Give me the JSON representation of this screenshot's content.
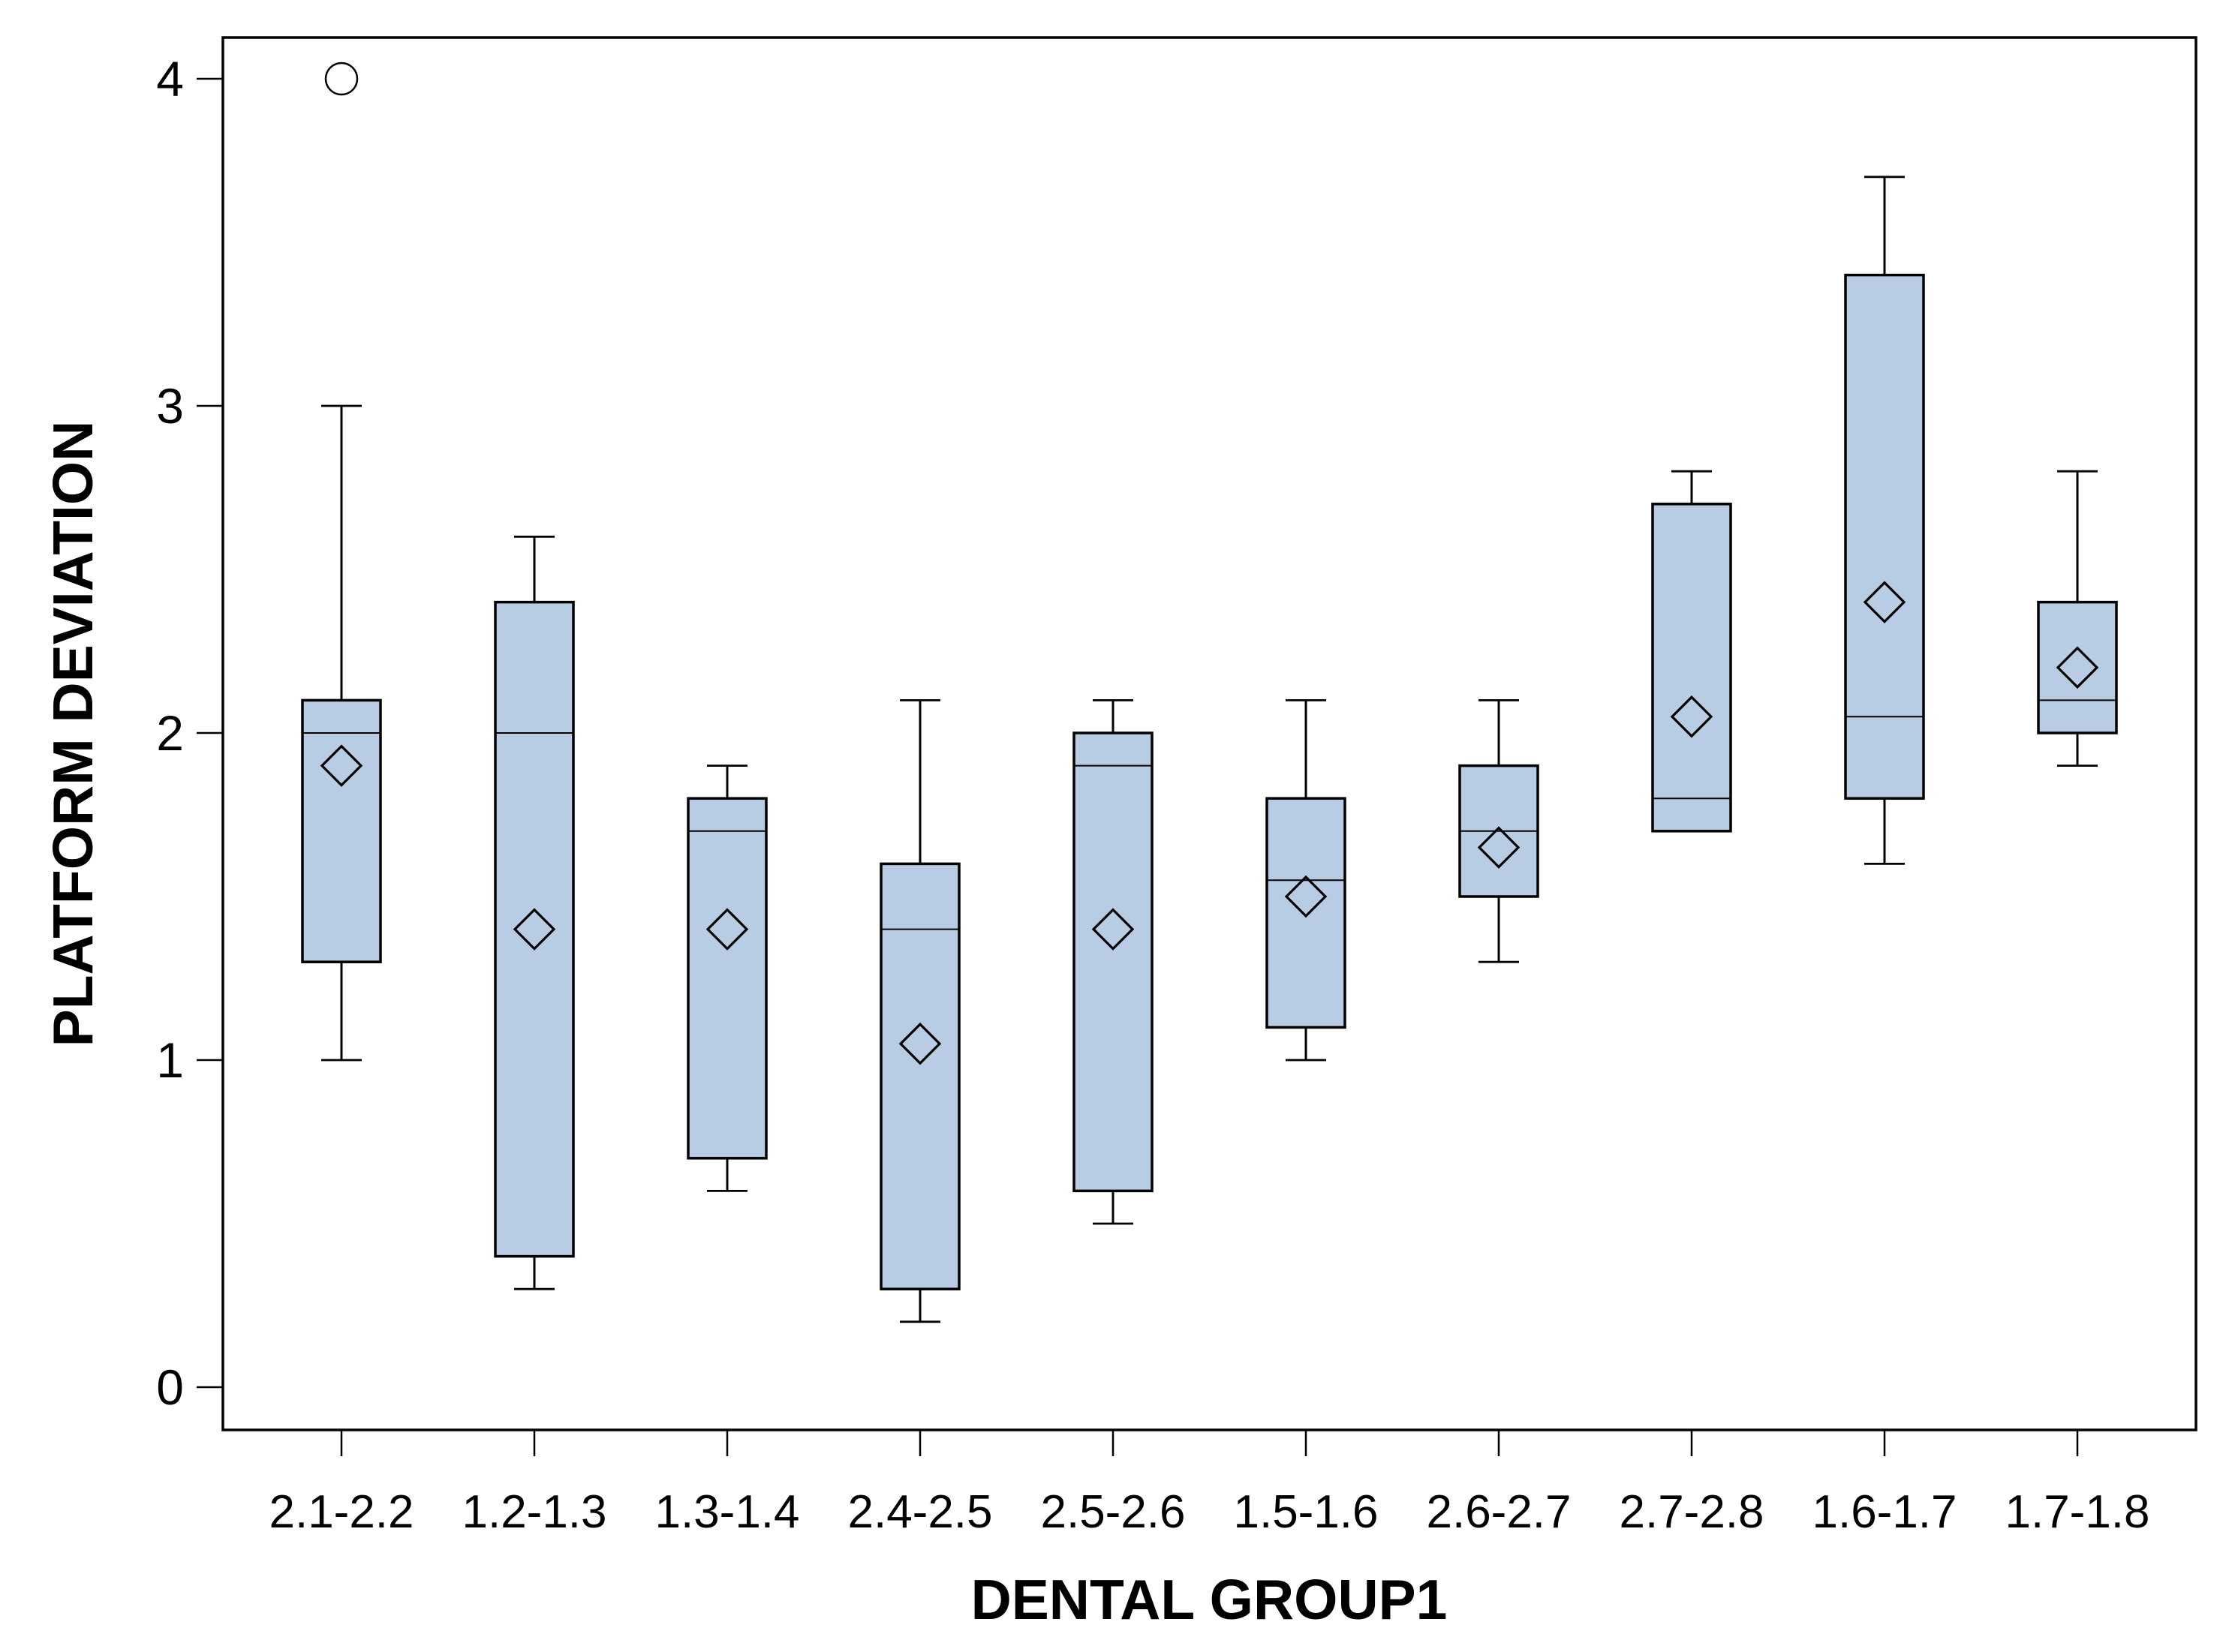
{
  "chart_data": {
    "type": "boxplot",
    "title": "",
    "xlabel": "DENTAL GROUP1",
    "ylabel": "PLATFORM DEVIATION",
    "y_axis": {
      "min": 0,
      "max": 4,
      "ticks": [
        "0",
        "1",
        "2",
        "3",
        "4"
      ],
      "tick_values": [
        0,
        1,
        2,
        3,
        4
      ]
    },
    "legend": "none",
    "grid": false,
    "categories": [
      "2.1-2.2",
      "1.2-1.3",
      "1.3-1.4",
      "2.4-2.5",
      "2.5-2.6",
      "1.5-1.6",
      "2.6-2.7",
      "2.7-2.8",
      "1.6-1.7",
      "1.7-1.8"
    ],
    "series": [
      {
        "category": "2.1-2.2",
        "min": 1.0,
        "q1": 1.3,
        "median": 2.0,
        "q3": 2.1,
        "max": 3.0,
        "mean": 1.9,
        "outliers": [
          4.0
        ]
      },
      {
        "category": "1.2-1.3",
        "min": 0.3,
        "q1": 0.4,
        "median": 2.0,
        "q3": 2.4,
        "max": 2.6,
        "mean": 1.4,
        "outliers": []
      },
      {
        "category": "1.3-1.4",
        "min": 0.6,
        "q1": 0.7,
        "median": 1.7,
        "q3": 1.8,
        "max": 1.9,
        "mean": 1.4,
        "outliers": []
      },
      {
        "category": "2.4-2.5",
        "min": 0.2,
        "q1": 0.3,
        "median": 1.4,
        "q3": 1.6,
        "max": 2.1,
        "mean": 1.05,
        "outliers": []
      },
      {
        "category": "2.5-2.6",
        "min": 0.5,
        "q1": 0.6,
        "median": 1.9,
        "q3": 2.0,
        "max": 2.1,
        "mean": 1.4,
        "outliers": []
      },
      {
        "category": "1.5-1.6",
        "min": 1.0,
        "q1": 1.1,
        "median": 1.55,
        "q3": 1.8,
        "max": 2.1,
        "mean": 1.5,
        "outliers": []
      },
      {
        "category": "2.6-2.7",
        "min": 1.3,
        "q1": 1.5,
        "median": 1.7,
        "q3": 1.9,
        "max": 2.1,
        "mean": 1.65,
        "outliers": []
      },
      {
        "category": "2.7-2.8",
        "min": 1.7,
        "q1": 1.7,
        "median": 1.8,
        "q3": 2.7,
        "max": 2.8,
        "mean": 2.05,
        "outliers": []
      },
      {
        "category": "1.6-1.7",
        "min": 1.6,
        "q1": 1.8,
        "median": 2.05,
        "q3": 3.4,
        "max": 3.7,
        "mean": 2.4,
        "outliers": []
      },
      {
        "category": "1.7-1.8",
        "min": 1.9,
        "q1": 2.0,
        "median": 2.1,
        "q3": 2.4,
        "max": 2.8,
        "mean": 2.2,
        "outliers": []
      }
    ],
    "style": {
      "box_fill": "#b8cce4",
      "line_color": "#000000",
      "background": "#ffffff",
      "mean_marker": "diamond",
      "outlier_marker": "circle"
    }
  }
}
